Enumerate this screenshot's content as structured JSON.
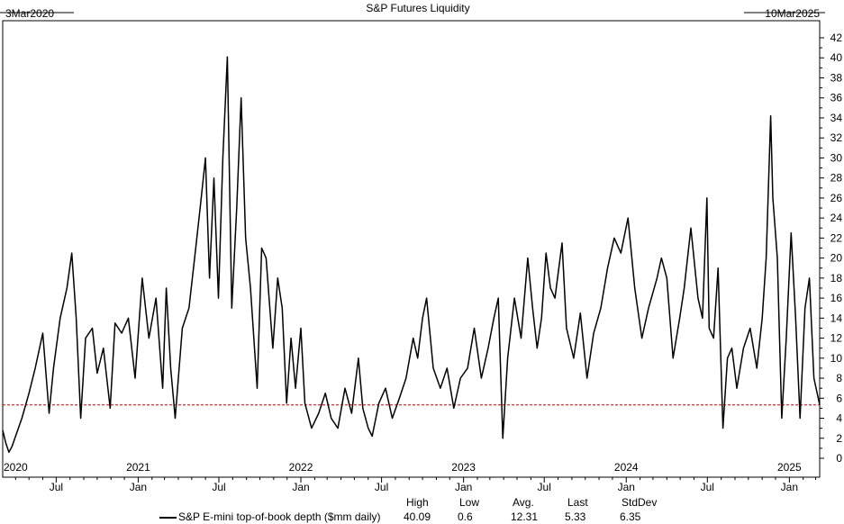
{
  "chart_data": {
    "type": "line",
    "title": "S&P Futures Liquidity",
    "start_label": "3Mar2020",
    "end_label": "10Mar2025",
    "xlabel": "",
    "ylabel": "",
    "ylim": [
      0,
      42
    ],
    "y_ticks": [
      0,
      2,
      4,
      6,
      8,
      10,
      12,
      14,
      16,
      18,
      20,
      22,
      24,
      26,
      28,
      30,
      32,
      34,
      36,
      38,
      40,
      42
    ],
    "grid": false,
    "x_year_labels": [
      {
        "date": "2020-03-03",
        "label": "2020"
      },
      {
        "date": "2021-01-01",
        "label": "2021"
      },
      {
        "date": "2022-01-01",
        "label": "2022"
      },
      {
        "date": "2023-01-01",
        "label": "2023"
      },
      {
        "date": "2024-01-01",
        "label": "2024"
      },
      {
        "date": "2025-01-01",
        "label": "2025"
      }
    ],
    "x_month_labels": [
      {
        "date": "2020-07-01",
        "label": "Jul"
      },
      {
        "date": "2021-01-01",
        "label": "Jan"
      },
      {
        "date": "2021-07-01",
        "label": "Jul"
      },
      {
        "date": "2022-01-01",
        "label": "Jan"
      },
      {
        "date": "2022-07-01",
        "label": "Jul"
      },
      {
        "date": "2023-01-01",
        "label": "Jan"
      },
      {
        "date": "2023-07-01",
        "label": "Jul"
      },
      {
        "date": "2024-01-01",
        "label": "Jan"
      },
      {
        "date": "2024-07-01",
        "label": "Jul"
      },
      {
        "date": "2025-01-01",
        "label": "Jan"
      }
    ],
    "reference_line": {
      "value": 5.33,
      "style": "dashed",
      "color": "#cc0000"
    },
    "series": [
      {
        "name": "S&P E-mini top-of-book depth ($mm daily)",
        "color": "#000000",
        "points": [
          [
            "2020-03-03",
            2.8
          ],
          [
            "2020-03-10",
            1.5
          ],
          [
            "2020-03-17",
            0.6
          ],
          [
            "2020-03-24",
            1.2
          ],
          [
            "2020-04-01",
            2.2
          ],
          [
            "2020-04-15",
            4.0
          ],
          [
            "2020-05-01",
            6.5
          ],
          [
            "2020-05-15",
            9.0
          ],
          [
            "2020-06-01",
            12.5
          ],
          [
            "2020-06-15",
            4.5
          ],
          [
            "2020-06-25",
            9.0
          ],
          [
            "2020-07-10",
            14.0
          ],
          [
            "2020-07-25",
            17.0
          ],
          [
            "2020-08-05",
            20.5
          ],
          [
            "2020-08-15",
            14.0
          ],
          [
            "2020-08-25",
            4.0
          ],
          [
            "2020-09-05",
            12.0
          ],
          [
            "2020-09-20",
            13.0
          ],
          [
            "2020-10-01",
            8.5
          ],
          [
            "2020-10-15",
            11.0
          ],
          [
            "2020-10-30",
            5.0
          ],
          [
            "2020-11-10",
            13.5
          ],
          [
            "2020-11-25",
            12.5
          ],
          [
            "2020-12-10",
            14.0
          ],
          [
            "2020-12-25",
            8.0
          ],
          [
            "2021-01-10",
            18.0
          ],
          [
            "2021-01-25",
            12.0
          ],
          [
            "2021-02-10",
            16.0
          ],
          [
            "2021-02-25",
            7.0
          ],
          [
            "2021-03-05",
            17.0
          ],
          [
            "2021-03-15",
            9.0
          ],
          [
            "2021-03-25",
            4.0
          ],
          [
            "2021-04-10",
            13.0
          ],
          [
            "2021-04-25",
            15.0
          ],
          [
            "2021-05-10",
            21.0
          ],
          [
            "2021-05-20",
            25.0
          ],
          [
            "2021-06-01",
            30.0
          ],
          [
            "2021-06-10",
            18.0
          ],
          [
            "2021-06-20",
            28.0
          ],
          [
            "2021-06-30",
            16.0
          ],
          [
            "2021-07-10",
            30.0
          ],
          [
            "2021-07-20",
            40.09
          ],
          [
            "2021-07-30",
            15.0
          ],
          [
            "2021-08-10",
            25.0
          ],
          [
            "2021-08-20",
            36.0
          ],
          [
            "2021-08-30",
            22.0
          ],
          [
            "2021-09-10",
            17.0
          ],
          [
            "2021-09-25",
            7.0
          ],
          [
            "2021-10-05",
            21.0
          ],
          [
            "2021-10-15",
            20.0
          ],
          [
            "2021-10-30",
            11.0
          ],
          [
            "2021-11-10",
            18.0
          ],
          [
            "2021-11-20",
            15.0
          ],
          [
            "2021-11-30",
            5.5
          ],
          [
            "2021-12-10",
            12.0
          ],
          [
            "2021-12-20",
            7.0
          ],
          [
            "2022-01-01",
            13.0
          ],
          [
            "2022-01-10",
            5.5
          ],
          [
            "2022-01-25",
            3.0
          ],
          [
            "2022-02-10",
            4.5
          ],
          [
            "2022-02-25",
            6.5
          ],
          [
            "2022-03-10",
            4.0
          ],
          [
            "2022-03-25",
            3.0
          ],
          [
            "2022-04-10",
            7.0
          ],
          [
            "2022-04-25",
            4.5
          ],
          [
            "2022-05-10",
            10.0
          ],
          [
            "2022-05-20",
            5.0
          ],
          [
            "2022-06-01",
            3.0
          ],
          [
            "2022-06-10",
            2.2
          ],
          [
            "2022-06-25",
            5.5
          ],
          [
            "2022-07-10",
            7.0
          ],
          [
            "2022-07-25",
            4.0
          ],
          [
            "2022-08-10",
            6.0
          ],
          [
            "2022-08-25",
            8.0
          ],
          [
            "2022-09-10",
            12.0
          ],
          [
            "2022-09-20",
            10.0
          ],
          [
            "2022-10-01",
            14.0
          ],
          [
            "2022-10-10",
            16.0
          ],
          [
            "2022-10-25",
            9.0
          ],
          [
            "2022-11-10",
            7.0
          ],
          [
            "2022-11-25",
            9.0
          ],
          [
            "2022-12-10",
            5.0
          ],
          [
            "2022-12-25",
            8.0
          ],
          [
            "2023-01-10",
            9.0
          ],
          [
            "2023-01-25",
            13.0
          ],
          [
            "2023-02-10",
            8.0
          ],
          [
            "2023-02-25",
            11.0
          ],
          [
            "2023-03-10",
            14.0
          ],
          [
            "2023-03-20",
            16.0
          ],
          [
            "2023-03-30",
            2.0
          ],
          [
            "2023-04-10",
            10.0
          ],
          [
            "2023-04-25",
            16.0
          ],
          [
            "2023-05-10",
            12.0
          ],
          [
            "2023-05-25",
            20.0
          ],
          [
            "2023-06-05",
            15.0
          ],
          [
            "2023-06-15",
            11.0
          ],
          [
            "2023-06-25",
            14.0
          ],
          [
            "2023-07-05",
            20.5
          ],
          [
            "2023-07-15",
            17.0
          ],
          [
            "2023-07-25",
            16.0
          ],
          [
            "2023-08-10",
            21.5
          ],
          [
            "2023-08-20",
            13.0
          ],
          [
            "2023-09-05",
            10.0
          ],
          [
            "2023-09-20",
            14.5
          ],
          [
            "2023-10-05",
            8.0
          ],
          [
            "2023-10-20",
            12.5
          ],
          [
            "2023-11-05",
            15.0
          ],
          [
            "2023-11-20",
            19.0
          ],
          [
            "2023-12-05",
            22.0
          ],
          [
            "2023-12-20",
            20.5
          ],
          [
            "2024-01-05",
            24.0
          ],
          [
            "2024-01-20",
            17.0
          ],
          [
            "2024-02-05",
            12.0
          ],
          [
            "2024-02-20",
            15.0
          ],
          [
            "2024-03-10",
            18.0
          ],
          [
            "2024-03-20",
            20.0
          ],
          [
            "2024-04-01",
            18.0
          ],
          [
            "2024-04-15",
            10.0
          ],
          [
            "2024-04-30",
            14.0
          ],
          [
            "2024-05-10",
            17.0
          ],
          [
            "2024-05-25",
            23.0
          ],
          [
            "2024-06-10",
            16.0
          ],
          [
            "2024-06-20",
            14.0
          ],
          [
            "2024-06-30",
            26.0
          ],
          [
            "2024-07-05",
            13.0
          ],
          [
            "2024-07-15",
            12.0
          ],
          [
            "2024-07-25",
            19.0
          ],
          [
            "2024-08-05",
            3.0
          ],
          [
            "2024-08-15",
            10.0
          ],
          [
            "2024-08-25",
            11.0
          ],
          [
            "2024-09-05",
            7.0
          ],
          [
            "2024-09-20",
            11.0
          ],
          [
            "2024-10-05",
            13.0
          ],
          [
            "2024-10-20",
            9.0
          ],
          [
            "2024-11-01",
            14.0
          ],
          [
            "2024-11-10",
            20.0
          ],
          [
            "2024-11-20",
            34.2
          ],
          [
            "2024-11-25",
            26.0
          ],
          [
            "2024-12-05",
            20.0
          ],
          [
            "2024-12-15",
            4.0
          ],
          [
            "2024-12-25",
            12.0
          ],
          [
            "2025-01-05",
            22.5
          ],
          [
            "2025-01-15",
            14.0
          ],
          [
            "2025-01-25",
            4.0
          ],
          [
            "2025-02-05",
            15.0
          ],
          [
            "2025-02-15",
            18.0
          ],
          [
            "2025-02-25",
            8.0
          ],
          [
            "2025-03-10",
            5.33
          ]
        ]
      }
    ],
    "stats_headers": [
      "High",
      "Low",
      "Avg.",
      "Last",
      "StdDev"
    ],
    "stats_values": [
      "40.09",
      "0.6",
      "12.31",
      "5.33",
      "6.35"
    ]
  }
}
